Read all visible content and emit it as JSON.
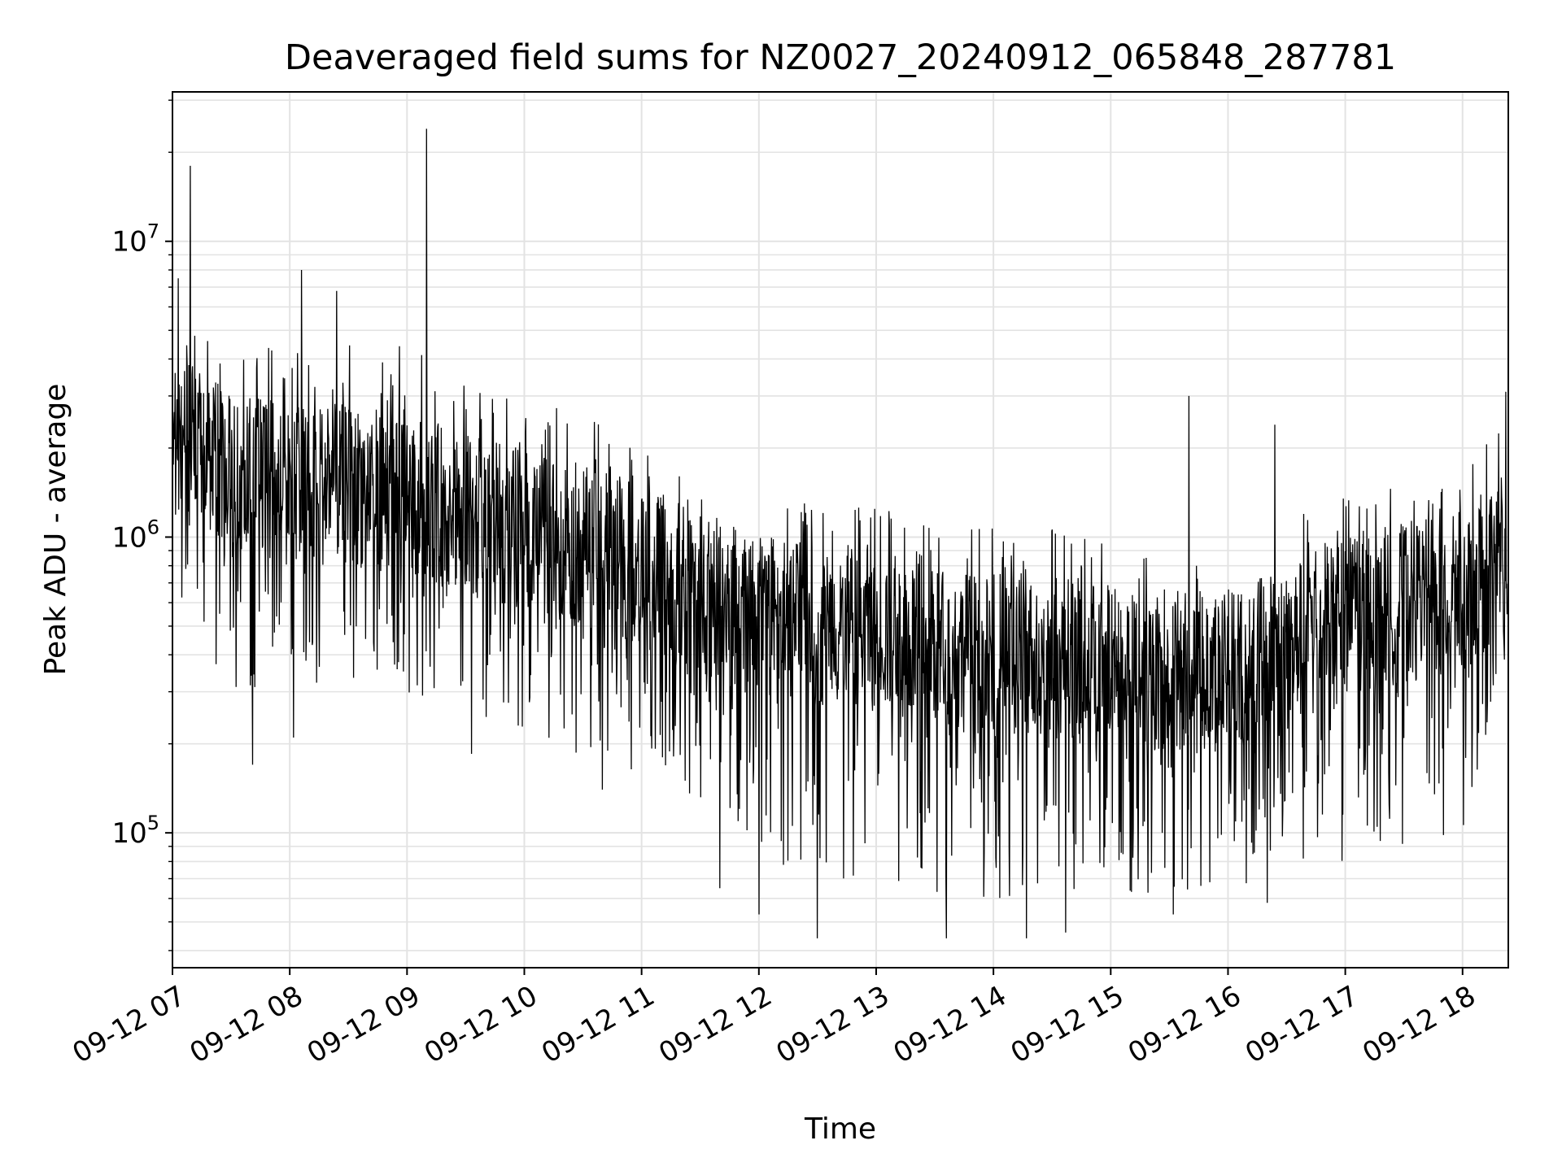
{
  "chart_data": {
    "type": "line",
    "title": "Deaveraged field sums for NZ0027_20240912_065848_287781",
    "xlabel": "Time",
    "ylabel": "Peak ADU - average",
    "yscale": "log",
    "ylim": [
      35000,
      32000000
    ],
    "xlim_hours": [
      7.0,
      18.39
    ],
    "grid": true,
    "grid_minor": true,
    "line_color": "#000000",
    "x_ticks": [
      "09-12 07",
      "09-12 08",
      "09-12 09",
      "09-12 10",
      "09-12 11",
      "09-12 12",
      "09-12 13",
      "09-12 14",
      "09-12 15",
      "09-12 16",
      "09-12 17",
      "09-12 18"
    ],
    "y_ticks": [
      {
        "base": "10",
        "exp": "5",
        "value": 100000
      },
      {
        "base": "10",
        "exp": "6",
        "value": 1000000
      },
      {
        "base": "10",
        "exp": "7",
        "value": 10000000
      }
    ],
    "series": [
      {
        "profile": [
          {
            "x": "09-12 07:00",
            "center": 2200000,
            "max": 6000000,
            "min": 400000
          },
          {
            "x": "09-12 07:30",
            "center": 1700000,
            "max": 4500000,
            "min": 300000
          },
          {
            "x": "09-12 08:00",
            "center": 1500000,
            "max": 5000000,
            "min": 300000
          },
          {
            "x": "09-12 08:30",
            "center": 1500000,
            "max": 4500000,
            "min": 300000
          },
          {
            "x": "09-12 09:00",
            "center": 1400000,
            "max": 4500000,
            "min": 300000
          },
          {
            "x": "09-12 09:30",
            "center": 1200000,
            "max": 3500000,
            "min": 250000
          },
          {
            "x": "09-12 10:00",
            "center": 1050000,
            "max": 3000000,
            "min": 220000
          },
          {
            "x": "09-12 10:30",
            "center": 950000,
            "max": 2600000,
            "min": 180000
          },
          {
            "x": "09-12 11:00",
            "center": 800000,
            "max": 2000000,
            "min": 150000
          },
          {
            "x": "09-12 11:30",
            "center": 650000,
            "max": 1500000,
            "min": 120000
          },
          {
            "x": "09-12 12:00",
            "center": 550000,
            "max": 1300000,
            "min": 80000
          },
          {
            "x": "09-12 12:30",
            "center": 500000,
            "max": 1300000,
            "min": 70000
          },
          {
            "x": "09-12 13:00",
            "center": 480000,
            "max": 1300000,
            "min": 70000
          },
          {
            "x": "09-12 13:30",
            "center": 420000,
            "max": 1100000,
            "min": 60000
          },
          {
            "x": "09-12 14:00",
            "center": 400000,
            "max": 1100000,
            "min": 60000
          },
          {
            "x": "09-12 14:30",
            "center": 400000,
            "max": 1100000,
            "min": 60000
          },
          {
            "x": "09-12 15:00",
            "center": 370000,
            "max": 950000,
            "min": 60000
          },
          {
            "x": "09-12 15:30",
            "center": 350000,
            "max": 850000,
            "min": 60000
          },
          {
            "x": "09-12 16:00",
            "center": 350000,
            "max": 750000,
            "min": 60000
          },
          {
            "x": "09-12 16:30",
            "center": 420000,
            "max": 1200000,
            "min": 80000
          },
          {
            "x": "09-12 17:00",
            "center": 550000,
            "max": 1400000,
            "min": 80000
          },
          {
            "x": "09-12 17:30",
            "center": 600000,
            "max": 1500000,
            "min": 90000
          },
          {
            "x": "09-12 18:00",
            "center": 650000,
            "max": 1600000,
            "min": 100000
          },
          {
            "x": "09-12 18:23",
            "center": 900000,
            "max": 3000000,
            "min": 400000
          }
        ],
        "spikes": [
          {
            "x": "09-12 07:09",
            "value": 18000000
          },
          {
            "x": "09-12 07:03",
            "value": 7500000
          },
          {
            "x": "09-12 08:06",
            "value": 8000000
          },
          {
            "x": "09-12 08:24",
            "value": 6800000
          },
          {
            "x": "09-12 09:10",
            "value": 24000000
          },
          {
            "x": "09-12 15:40",
            "value": 3000000
          },
          {
            "x": "09-12 16:24",
            "value": 2400000
          },
          {
            "x": "09-12 18:22",
            "value": 3100000
          },
          {
            "x": "09-12 07:41",
            "value": 170000
          },
          {
            "x": "09-12 08:02",
            "value": 210000
          },
          {
            "x": "09-12 09:33",
            "value": 185000
          },
          {
            "x": "09-12 10:40",
            "value": 140000
          },
          {
            "x": "09-12 11:40",
            "value": 65000
          },
          {
            "x": "09-12 12:00",
            "value": 53000
          },
          {
            "x": "09-12 12:30",
            "value": 44000
          },
          {
            "x": "09-12 13:36",
            "value": 44000
          },
          {
            "x": "09-12 14:17",
            "value": 44000
          },
          {
            "x": "09-12 14:37",
            "value": 46000
          },
          {
            "x": "09-12 15:32",
            "value": 53000
          },
          {
            "x": "09-12 16:20",
            "value": 58000
          }
        ]
      }
    ]
  }
}
